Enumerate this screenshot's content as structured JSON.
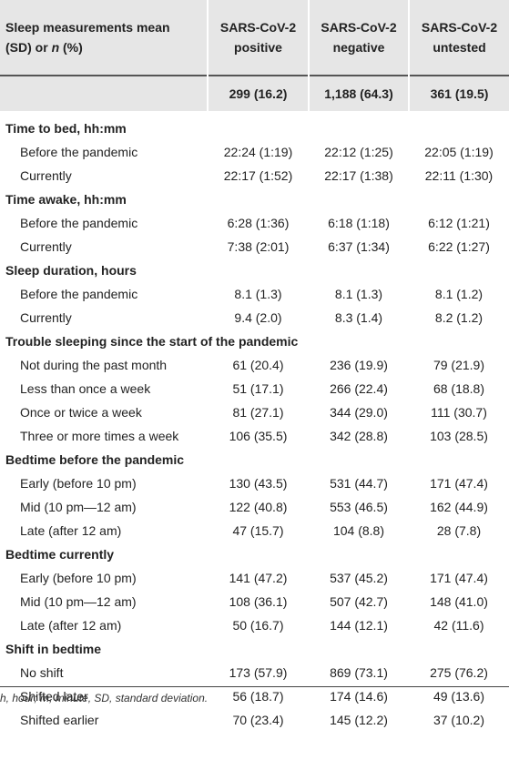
{
  "header": {
    "stub_line1": "Sleep measurements mean",
    "stub_line2_pre": "(SD) or ",
    "stub_line2_n": "n",
    "stub_line2_post": " (%)",
    "columns": [
      {
        "line1": "SARS-CoV-2",
        "line2": "positive",
        "count": "299 (16.2)"
      },
      {
        "line1": "SARS-CoV-2",
        "line2": "negative",
        "count": "1,188 (64.3)"
      },
      {
        "line1": "SARS-CoV-2",
        "line2": "untested",
        "count": "361 (19.5)"
      }
    ]
  },
  "sections": [
    {
      "title": "Time to bed, hh:mm",
      "rows": [
        {
          "label": "Before the pandemic",
          "values": [
            "22:24 (1:19)",
            "22:12 (1:25)",
            "22:05 (1:19)"
          ]
        },
        {
          "label": "Currently",
          "values": [
            "22:17 (1:52)",
            "22:17 (1:38)",
            "22:11 (1:30)"
          ]
        }
      ]
    },
    {
      "title": "Time awake, hh:mm",
      "rows": [
        {
          "label": "Before the pandemic",
          "values": [
            "6:28 (1:36)",
            "6:18 (1:18)",
            "6:12 (1:21)"
          ]
        },
        {
          "label": "Currently",
          "values": [
            "7:38 (2:01)",
            "6:37 (1:34)",
            "6:22 (1:27)"
          ]
        }
      ]
    },
    {
      "title": "Sleep duration, hours",
      "rows": [
        {
          "label": "Before the pandemic",
          "values": [
            "8.1 (1.3)",
            "8.1 (1.3)",
            "8.1 (1.2)"
          ]
        },
        {
          "label": "Currently",
          "values": [
            "9.4 (2.0)",
            "8.3 (1.4)",
            "8.2 (1.2)"
          ]
        }
      ]
    },
    {
      "title": "Trouble sleeping since the start of the pandemic",
      "rows": [
        {
          "label": "Not during the past month",
          "values": [
            "61 (20.4)",
            "236 (19.9)",
            "79 (21.9)"
          ]
        },
        {
          "label": "Less than once a week",
          "values": [
            "51 (17.1)",
            "266 (22.4)",
            "68 (18.8)"
          ]
        },
        {
          "label": "Once or twice a week",
          "values": [
            "81 (27.1)",
            "344 (29.0)",
            "111 (30.7)"
          ]
        },
        {
          "label": "Three or more times a week",
          "values": [
            "106 (35.5)",
            "342 (28.8)",
            "103 (28.5)"
          ]
        }
      ]
    },
    {
      "title": "Bedtime before the pandemic",
      "rows": [
        {
          "label": "Early (before 10 pm)",
          "values": [
            "130 (43.5)",
            "531 (44.7)",
            "171 (47.4)"
          ]
        },
        {
          "label": "Mid (10 pm—12 am)",
          "values": [
            "122 (40.8)",
            "553 (46.5)",
            "162 (44.9)"
          ]
        },
        {
          "label": "Late (after 12 am)",
          "values": [
            "47 (15.7)",
            "104 (8.8)",
            "28 (7.8)"
          ]
        }
      ]
    },
    {
      "title": "Bedtime currently",
      "rows": [
        {
          "label": "Early (before 10 pm)",
          "values": [
            "141 (47.2)",
            "537 (45.2)",
            "171 (47.4)"
          ]
        },
        {
          "label": "Mid (10 pm—12 am)",
          "values": [
            "108 (36.1)",
            "507 (42.7)",
            "148 (41.0)"
          ]
        },
        {
          "label": "Late (after 12 am)",
          "values": [
            "50 (16.7)",
            "144 (12.1)",
            "42 (11.6)"
          ]
        }
      ]
    },
    {
      "title": "Shift in bedtime",
      "rows": [
        {
          "label": "No shift",
          "values": [
            "173 (57.9)",
            "869 (73.1)",
            "275 (76.2)"
          ]
        },
        {
          "label": "Shifted later",
          "values": [
            "56 (18.7)",
            "174 (14.6)",
            "49 (13.6)"
          ]
        },
        {
          "label": "Shifted earlier",
          "values": [
            "70 (23.4)",
            "145 (12.2)",
            "37 (10.2)"
          ]
        }
      ]
    }
  ],
  "footnote": "h, hour; m, minute, SD, standard deviation.",
  "colors": {
    "header_bg": "#e6e6e6",
    "text": "#222222"
  }
}
